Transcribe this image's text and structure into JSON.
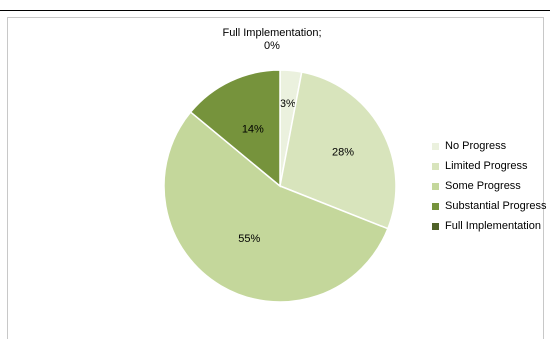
{
  "chart_data": {
    "type": "pie",
    "title": "",
    "categories": [
      "No Progress",
      "Limited Progress",
      "Some Progress",
      "Substantial Progress",
      "Full Implementation"
    ],
    "values": [
      3,
      28,
      55,
      14,
      0
    ],
    "data_labels": [
      "3%",
      "28%",
      "55%",
      "14%",
      "Full Implementation;\n0%"
    ],
    "colors": [
      "#ebf1de",
      "#d8e4bc",
      "#c4d79b",
      "#76933c",
      "#4f6228"
    ],
    "legend_position": "right"
  }
}
